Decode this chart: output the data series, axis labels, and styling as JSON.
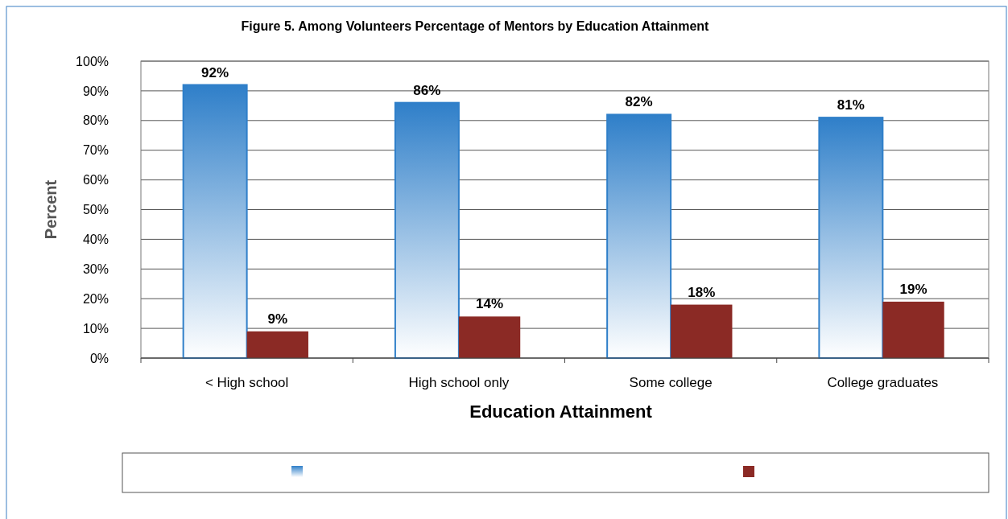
{
  "chart_data": {
    "type": "bar",
    "title": "Figure 5. Among Volunteers Percentage of Mentors by Education Attainment",
    "xlabel": "Education Attainment",
    "ylabel": "Percent",
    "categories": [
      "< High school",
      "High school only",
      "Some college",
      "College graduates"
    ],
    "series": [
      {
        "color": "#2f7fc9",
        "values": [
          92,
          86,
          82,
          81
        ],
        "value_labels": [
          "92%",
          "86%",
          "82%",
          "81%"
        ]
      },
      {
        "color": "#8b2a25",
        "values": [
          9,
          14,
          18,
          19
        ],
        "value_labels": [
          "9%",
          "14%",
          "18%",
          "19%"
        ]
      }
    ],
    "ylim": [
      0,
      100
    ],
    "yticks": [
      {
        "value": 0,
        "label": "0%"
      },
      {
        "value": 10,
        "label": "10%"
      },
      {
        "value": 20,
        "label": "20%"
      },
      {
        "value": 30,
        "label": "30%"
      },
      {
        "value": 40,
        "label": "40%"
      },
      {
        "value": 50,
        "label": "50%"
      },
      {
        "value": 60,
        "label": "60%"
      },
      {
        "value": 70,
        "label": "70%"
      },
      {
        "value": 80,
        "label": "80%"
      },
      {
        "value": 90,
        "label": "90%"
      },
      {
        "value": 100,
        "label": "100%"
      }
    ],
    "grid": "y"
  }
}
